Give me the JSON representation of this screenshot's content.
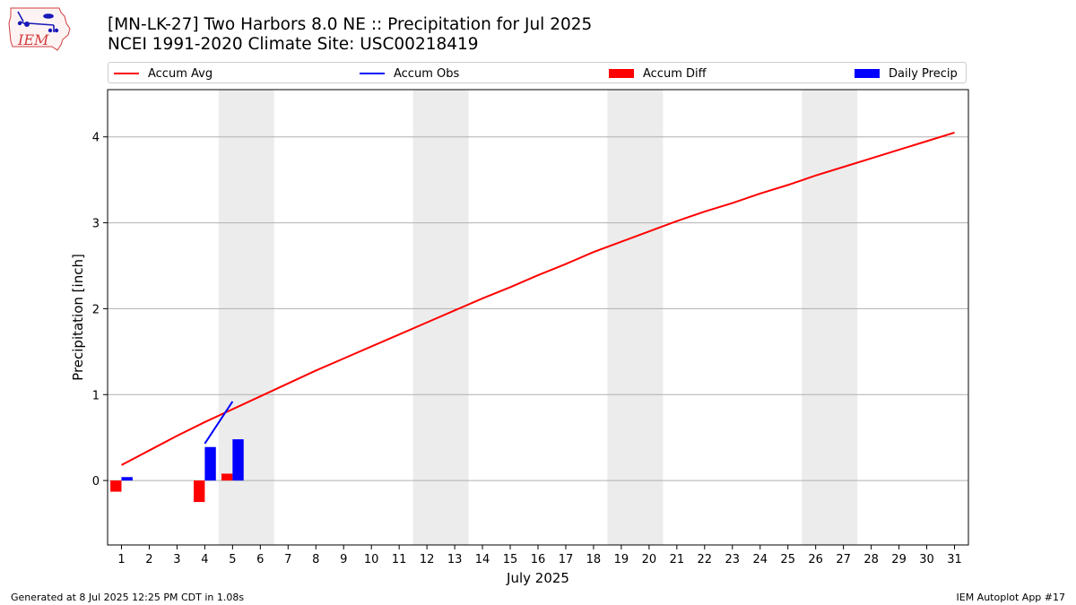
{
  "header": {
    "title_line1": "[MN-LK-27] Two Harbors 8.0 NE :: Precipitation for Jul 2025",
    "title_line2": "NCEI 1991-2020 Climate Site: USC00218419",
    "logo_text": "IEM"
  },
  "legend": {
    "accum_avg": "Accum Avg",
    "accum_obs": "Accum Obs",
    "accum_diff": "Accum Diff",
    "daily_precip": "Daily Precip"
  },
  "footer": {
    "generated": "Generated at 8 Jul 2025 12:25 PM CDT in 1.08s",
    "app": "IEM Autoplot App #17"
  },
  "colors": {
    "accum_avg": "#ff0000",
    "accum_obs": "#0000ff",
    "accum_diff": "#ff0000",
    "daily_precip": "#0000ff",
    "weekend_shade": "#ececec",
    "grid": "#b0b0b0"
  },
  "chart_data": {
    "type": "bar",
    "xlabel": "July 2025",
    "ylabel": "Precipitation [inch]",
    "xlim": [
      0.5,
      31.5
    ],
    "ylim": [
      -0.75,
      4.55
    ],
    "yticks": [
      0,
      1,
      2,
      3,
      4
    ],
    "x": [
      1,
      2,
      3,
      4,
      5,
      6,
      7,
      8,
      9,
      10,
      11,
      12,
      13,
      14,
      15,
      16,
      17,
      18,
      19,
      20,
      21,
      22,
      23,
      24,
      25,
      26,
      27,
      28,
      29,
      30,
      31
    ],
    "weekend_spans": [
      [
        4.5,
        6.5
      ],
      [
        11.5,
        13.5
      ],
      [
        18.5,
        20.5
      ],
      [
        25.5,
        27.5
      ]
    ],
    "grid": "horizontal",
    "series": [
      {
        "name": "Accum Avg",
        "type": "line",
        "x": [
          1,
          2,
          3,
          4,
          5,
          6,
          7,
          8,
          9,
          10,
          11,
          12,
          13,
          14,
          15,
          16,
          17,
          18,
          19,
          20,
          21,
          22,
          23,
          24,
          25,
          26,
          27,
          28,
          29,
          30,
          31
        ],
        "values": [
          0.18,
          0.35,
          0.52,
          0.68,
          0.83,
          0.98,
          1.13,
          1.28,
          1.42,
          1.56,
          1.7,
          1.84,
          1.98,
          2.12,
          2.25,
          2.39,
          2.52,
          2.66,
          2.78,
          2.9,
          3.02,
          3.13,
          3.23,
          3.34,
          3.44,
          3.55,
          3.65,
          3.75,
          3.85,
          3.95,
          4.05
        ]
      },
      {
        "name": "Accum Obs",
        "type": "line",
        "x": [
          4,
          5
        ],
        "values": [
          0.43,
          0.92
        ]
      },
      {
        "name": "Accum Diff",
        "type": "bar",
        "x": [
          1,
          4,
          5
        ],
        "values": [
          -0.13,
          -0.25,
          0.08
        ]
      },
      {
        "name": "Daily Precip",
        "type": "bar",
        "x": [
          1,
          4,
          5
        ],
        "values": [
          0.04,
          0.39,
          0.48
        ]
      }
    ]
  }
}
